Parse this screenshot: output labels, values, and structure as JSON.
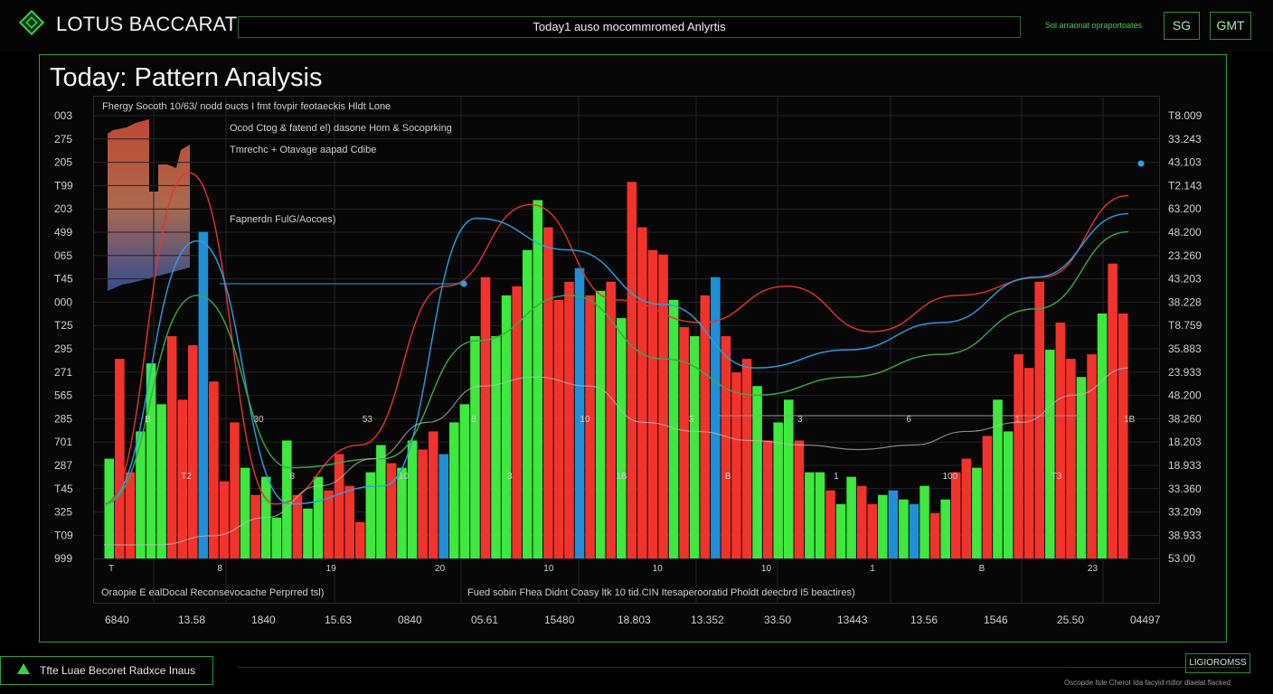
{
  "header": {
    "brand": "LOTUS BACCARAT",
    "title_field": "Today1 auso mocommromed Anlyrtis",
    "status_text": "Sol arraonat opraportoates",
    "btn_a": "SG",
    "btn_b": "GMT"
  },
  "panel": {
    "title": "Today: Pattern Analysis"
  },
  "annotations": {
    "line1": "Fhergy Socoth 10/63/ nodd oucts I fmt fovpir feotaeckis Hldt Lone",
    "line2": "Ocod Ctog & fatend el) dasone Hom & Socoprking",
    "line3": "Tmrechc + Otavage aapad Cdibe",
    "line4": "Fapnerdn FulG/Aocoes)",
    "bottom_left": "Oraopie E ealDocal Reconsevocache Perprred tsl)",
    "bottom_right": "Fued sobin Fhea Didnt Coasy ltk 10 tid.CIN Itesaperooratid Pholdt deecbrd I5 beactires)"
  },
  "footer": {
    "title": "Tfte Luae Becoret Radxce Inaus",
    "button": "LIGIOROMSS",
    "note": "Oscopde Itde Cherot Ida facyid rtdlor dlaelat flacked"
  },
  "colors": {
    "accent": "#2f9a3a",
    "bar_green": "#3ee83e",
    "bar_red": "#f2332c",
    "bar_blue": "#1f8fd6",
    "line_red": "#e8342d",
    "line_blue": "#2a9fe6",
    "line_green": "#3aa84c",
    "grid": "#232323"
  },
  "icons": {
    "logo": "diamond-lotus-icon",
    "footer": "green-triangle-icon"
  },
  "chart_data": {
    "type": "bar",
    "grid": true,
    "ylim": [
      0,
      100
    ],
    "y_left_ticks": [
      "003",
      "275",
      "205",
      "T99",
      "203",
      "499",
      "065",
      "T45",
      "000",
      "T25",
      "295",
      "271",
      "565",
      "285",
      "701",
      "287",
      "T45",
      "325",
      "T09",
      "999"
    ],
    "y_right_ticks": [
      "T8.009",
      "33.243",
      "43.103",
      "T2.143",
      "63.200",
      "48.200",
      "23.260",
      "43.203",
      "38.228",
      "T8.759",
      "35.883",
      "23.933",
      "48.200",
      "38.260",
      "18.203",
      "18.933",
      "33.360",
      "33.209",
      "38.933",
      "53.00"
    ],
    "x_ticks": [
      "6840",
      "13.58",
      "1840",
      "15.63",
      "0840",
      "05.61",
      "15480",
      "18.803",
      "13.352",
      "33.50",
      "13443",
      "13.56",
      "1546",
      "25.50",
      "04497"
    ],
    "bars": [
      {
        "v": 22,
        "c": "g"
      },
      {
        "v": 44,
        "c": "r"
      },
      {
        "v": 19,
        "c": "r"
      },
      {
        "v": 28,
        "c": "g"
      },
      {
        "v": 43,
        "c": "g"
      },
      {
        "v": 34,
        "c": "g"
      },
      {
        "v": 49,
        "c": "r"
      },
      {
        "v": 35,
        "c": "r"
      },
      {
        "v": 47,
        "c": "r"
      },
      {
        "v": 72,
        "c": "b"
      },
      {
        "v": 39,
        "c": "r"
      },
      {
        "v": 17,
        "c": "r"
      },
      {
        "v": 30,
        "c": "r"
      },
      {
        "v": 20,
        "c": "g"
      },
      {
        "v": 14,
        "c": "r"
      },
      {
        "v": 18,
        "c": "g"
      },
      {
        "v": 9,
        "c": "g"
      },
      {
        "v": 26,
        "c": "g"
      },
      {
        "v": 14,
        "c": "r"
      },
      {
        "v": 11,
        "c": "g"
      },
      {
        "v": 18,
        "c": "g"
      },
      {
        "v": 15,
        "c": "r"
      },
      {
        "v": 23,
        "c": "r"
      },
      {
        "v": 16,
        "c": "r"
      },
      {
        "v": 8,
        "c": "r"
      },
      {
        "v": 19,
        "c": "g"
      },
      {
        "v": 25,
        "c": "g"
      },
      {
        "v": 21,
        "c": "r"
      },
      {
        "v": 20,
        "c": "g"
      },
      {
        "v": 26,
        "c": "g"
      },
      {
        "v": 24,
        "c": "r"
      },
      {
        "v": 28,
        "c": "r"
      },
      {
        "v": 23,
        "c": "b"
      },
      {
        "v": 30,
        "c": "g"
      },
      {
        "v": 34,
        "c": "g"
      },
      {
        "v": 49,
        "c": "g"
      },
      {
        "v": 62,
        "c": "r"
      },
      {
        "v": 49,
        "c": "g"
      },
      {
        "v": 58,
        "c": "g"
      },
      {
        "v": 60,
        "c": "r"
      },
      {
        "v": 68,
        "c": "g"
      },
      {
        "v": 79,
        "c": "g"
      },
      {
        "v": 73,
        "c": "r"
      },
      {
        "v": 57,
        "c": "r"
      },
      {
        "v": 61,
        "c": "r"
      },
      {
        "v": 64,
        "c": "b"
      },
      {
        "v": 58,
        "c": "r"
      },
      {
        "v": 59,
        "c": "g"
      },
      {
        "v": 61,
        "c": "r"
      },
      {
        "v": 53,
        "c": "g"
      },
      {
        "v": 83,
        "c": "r"
      },
      {
        "v": 73,
        "c": "r"
      },
      {
        "v": 68,
        "c": "r"
      },
      {
        "v": 67,
        "c": "r"
      },
      {
        "v": 57,
        "c": "g"
      },
      {
        "v": 51,
        "c": "r"
      },
      {
        "v": 49,
        "c": "g"
      },
      {
        "v": 58,
        "c": "r"
      },
      {
        "v": 62,
        "c": "b"
      },
      {
        "v": 49,
        "c": "r"
      },
      {
        "v": 41,
        "c": "r"
      },
      {
        "v": 44,
        "c": "r"
      },
      {
        "v": 38,
        "c": "g"
      },
      {
        "v": 26,
        "c": "r"
      },
      {
        "v": 30,
        "c": "g"
      },
      {
        "v": 35,
        "c": "g"
      },
      {
        "v": 26,
        "c": "r"
      },
      {
        "v": 19,
        "c": "g"
      },
      {
        "v": 19,
        "c": "g"
      },
      {
        "v": 15,
        "c": "r"
      },
      {
        "v": 12,
        "c": "g"
      },
      {
        "v": 18,
        "c": "g"
      },
      {
        "v": 16,
        "c": "r"
      },
      {
        "v": 12,
        "c": "r"
      },
      {
        "v": 14,
        "c": "g"
      },
      {
        "v": 15,
        "c": "b"
      },
      {
        "v": 13,
        "c": "g"
      },
      {
        "v": 12,
        "c": "b"
      },
      {
        "v": 16,
        "c": "g"
      },
      {
        "v": 10,
        "c": "r"
      },
      {
        "v": 13,
        "c": "g"
      },
      {
        "v": 19,
        "c": "r"
      },
      {
        "v": 22,
        "c": "r"
      },
      {
        "v": 20,
        "c": "g"
      },
      {
        "v": 27,
        "c": "r"
      },
      {
        "v": 35,
        "c": "g"
      },
      {
        "v": 28,
        "c": "g"
      },
      {
        "v": 45,
        "c": "r"
      },
      {
        "v": 42,
        "c": "r"
      },
      {
        "v": 61,
        "c": "r"
      },
      {
        "v": 46,
        "c": "g"
      },
      {
        "v": 52,
        "c": "r"
      },
      {
        "v": 44,
        "c": "r"
      },
      {
        "v": 40,
        "c": "g"
      },
      {
        "v": 45,
        "c": "r"
      },
      {
        "v": 54,
        "c": "g"
      },
      {
        "v": 65,
        "c": "r"
      },
      {
        "v": 54,
        "c": "r"
      }
    ],
    "series": [
      {
        "color": "red",
        "values": [
          12,
          85,
          12,
          25,
          60,
          78,
          57,
          52,
          60,
          50,
          58,
          62,
          80
        ]
      },
      {
        "color": "blue",
        "values": [
          12,
          70,
          12,
          16,
          75,
          68,
          56,
          42,
          46,
          52,
          62,
          76
        ]
      },
      {
        "color": "green",
        "values": [
          12,
          58,
          20,
          22,
          48,
          58,
          44,
          36,
          40,
          45,
          55,
          72
        ]
      }
    ],
    "floor_curve": [
      3,
      3,
      5,
      9,
      16,
      22,
      30,
      38,
      40,
      38,
      30,
      28,
      26,
      25,
      24,
      25,
      28,
      30,
      36,
      42
    ],
    "point_labels": [
      "T",
      "B",
      "T2",
      "8",
      "30",
      "8",
      "19",
      "53",
      "10",
      "20",
      "8",
      "3",
      "10",
      "10",
      "1B",
      "10",
      "3",
      "B",
      "10",
      "3",
      "1",
      "1",
      "6",
      "100",
      "B",
      "1",
      "T3",
      "23",
      "1B"
    ]
  }
}
